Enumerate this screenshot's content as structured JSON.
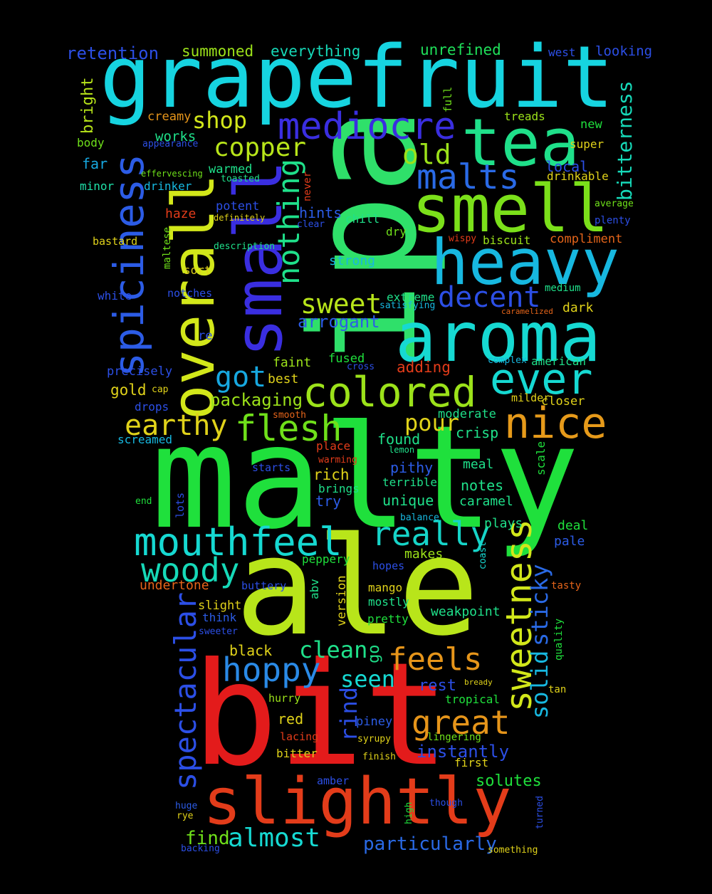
{
  "words": [
    {
      "text": "malty",
      "color": "#1fe03c"
    },
    {
      "text": "ipa",
      "color": "#2fe06a"
    },
    {
      "text": "ale",
      "color": "#b8e51a"
    },
    {
      "text": "bit",
      "color": "#e31b1b"
    },
    {
      "text": "grapefruit",
      "color": "#16d4e0"
    },
    {
      "text": "small",
      "color": "#3a2ee0"
    },
    {
      "text": "overall",
      "color": "#d2e71a"
    },
    {
      "text": "aroma",
      "color": "#16d9d2"
    },
    {
      "text": "slightly",
      "color": "#e33c1a"
    },
    {
      "text": "smell",
      "color": "#7be01a"
    },
    {
      "text": "heavy",
      "color": "#17b8e0"
    },
    {
      "text": "tea",
      "color": "#1fe08a"
    },
    {
      "text": "spiciness",
      "color": "#2c5ce6"
    },
    {
      "text": "mediocre",
      "color": "#3a2ee0"
    },
    {
      "text": "colored",
      "color": "#9ce21a"
    },
    {
      "text": "mouthfeel",
      "color": "#16d9d2"
    },
    {
      "text": "ever",
      "color": "#16d9d2"
    },
    {
      "text": "nice",
      "color": "#e69a1a"
    },
    {
      "text": "malts",
      "color": "#2a6ae6"
    },
    {
      "text": "flesh",
      "color": "#6fe01a"
    },
    {
      "text": "woody",
      "color": "#16d9b8"
    },
    {
      "text": "hoppy",
      "color": "#2a8ae6"
    },
    {
      "text": "sweetness",
      "color": "#d2e71a"
    },
    {
      "text": "really",
      "color": "#16d4c8"
    },
    {
      "text": "spectacular",
      "color": "#2c4fe6"
    },
    {
      "text": "great",
      "color": "#e6951a"
    },
    {
      "text": "feels",
      "color": "#e6951a"
    },
    {
      "text": "nothing",
      "color": "#1fe08a"
    },
    {
      "text": "earthy",
      "color": "#e0d21a"
    },
    {
      "text": "decent",
      "color": "#2c4fe6"
    },
    {
      "text": "got",
      "color": "#17a8e0"
    },
    {
      "text": "sweet",
      "color": "#b8e51a"
    },
    {
      "text": "copper",
      "color": "#b8e51a"
    },
    {
      "text": "old",
      "color": "#9ce21a"
    },
    {
      "text": "almost",
      "color": "#16d9d2"
    },
    {
      "text": "bitterness",
      "color": "#16d9b8"
    },
    {
      "text": "clean",
      "color": "#1fe08a"
    },
    {
      "text": "solid",
      "color": "#17b8e0"
    },
    {
      "text": "sticky",
      "color": "#2a6ae6"
    },
    {
      "text": "shop",
      "color": "#d2e71a"
    },
    {
      "text": "pour",
      "color": "#e0d21a"
    },
    {
      "text": "rind",
      "color": "#2c4fe6"
    },
    {
      "text": "seen",
      "color": "#16d9d2"
    },
    {
      "text": "particularly",
      "color": "#2a6ae6"
    },
    {
      "text": "arrogant",
      "color": "#2c5ce6"
    },
    {
      "text": "packaging",
      "color": "#9ce21a"
    },
    {
      "text": "instantly",
      "color": "#2c4fe6"
    },
    {
      "text": "find",
      "color": "#6fe01a"
    },
    {
      "text": "solutes",
      "color": "#1fe03c"
    },
    {
      "text": "retention",
      "color": "#2c4fe6"
    },
    {
      "text": "summoned",
      "color": "#9ce21a"
    },
    {
      "text": "everything",
      "color": "#16d9b8"
    },
    {
      "text": "unrefined",
      "color": "#1fe05a"
    },
    {
      "text": "west",
      "color": "#2c4fe6"
    },
    {
      "text": "looking",
      "color": "#2c4fe6"
    },
    {
      "text": "bright",
      "color": "#b8e51a"
    },
    {
      "text": "creamy",
      "color": "#e6951a"
    },
    {
      "text": "full",
      "color": "#6fe01a"
    },
    {
      "text": "treads",
      "color": "#9ce21a"
    },
    {
      "text": "works",
      "color": "#1fe08a"
    },
    {
      "text": "body",
      "color": "#6fe01a"
    },
    {
      "text": "appearance",
      "color": "#2c4fe6"
    },
    {
      "text": "new",
      "color": "#1fe03c"
    },
    {
      "text": "super",
      "color": "#e0d21a"
    },
    {
      "text": "far",
      "color": "#17a8e0"
    },
    {
      "text": "warmed",
      "color": "#1fe08a"
    },
    {
      "text": "local",
      "color": "#2c4fe6"
    },
    {
      "text": "effervescing",
      "color": "#6fe01a"
    },
    {
      "text": "toasted",
      "color": "#1fe08a"
    },
    {
      "text": "drinkable",
      "color": "#e0d21a"
    },
    {
      "text": "minor",
      "color": "#1fe0a8"
    },
    {
      "text": "drinker",
      "color": "#17b8e0"
    },
    {
      "text": "never",
      "color": "#e33c1a"
    },
    {
      "text": "haze",
      "color": "#e33c1a"
    },
    {
      "text": "potent",
      "color": "#2c4fe6"
    },
    {
      "text": "hints",
      "color": "#2c5ce6"
    },
    {
      "text": "chill",
      "color": "#1fe08a"
    },
    {
      "text": "dry",
      "color": "#6fe01a"
    },
    {
      "text": "average",
      "color": "#6fe01a"
    },
    {
      "text": "definitely",
      "color": "#e0d21a"
    },
    {
      "text": "clear",
      "color": "#2c4fe6"
    },
    {
      "text": "plenty",
      "color": "#2c4fe6"
    },
    {
      "text": "maltese",
      "color": "#6fe01a"
    },
    {
      "text": "bastard",
      "color": "#e0d21a"
    },
    {
      "text": "description",
      "color": "#1fe08a"
    },
    {
      "text": "wispy",
      "color": "#e33c1a"
    },
    {
      "text": "biscuit",
      "color": "#9ce21a"
    },
    {
      "text": "compliment",
      "color": "#e6651a"
    },
    {
      "text": "sort",
      "color": "#e0d21a"
    },
    {
      "text": "strong",
      "color": "#17b8e0"
    },
    {
      "text": "white",
      "color": "#2c4fe6"
    },
    {
      "text": "notches",
      "color": "#2c4fe6"
    },
    {
      "text": "extreme",
      "color": "#1fe08a"
    },
    {
      "text": "medium",
      "color": "#1fe08a"
    },
    {
      "text": "satisfying",
      "color": "#17b8e0"
    },
    {
      "text": "caramelized",
      "color": "#e6651a"
    },
    {
      "text": "dark",
      "color": "#e0d21a"
    },
    {
      "text": "re",
      "color": "#2c4fe6"
    },
    {
      "text": "faint",
      "color": "#9ce21a"
    },
    {
      "text": "fused",
      "color": "#1fe03c"
    },
    {
      "text": "best",
      "color": "#e0d21a"
    },
    {
      "text": "cross",
      "color": "#2c4fe6"
    },
    {
      "text": "complex",
      "color": "#17b8e0"
    },
    {
      "text": "american",
      "color": "#1fe08a"
    },
    {
      "text": "precisely",
      "color": "#2c4fe6"
    },
    {
      "text": "adding",
      "color": "#e33c1a"
    },
    {
      "text": "gold",
      "color": "#e0d21a"
    },
    {
      "text": "cap",
      "color": "#e0d21a"
    },
    {
      "text": "drops",
      "color": "#2c4fe6"
    },
    {
      "text": "smooth",
      "color": "#e6651a"
    },
    {
      "text": "moderate",
      "color": "#1fe08a"
    },
    {
      "text": "milder",
      "color": "#e0d21a"
    },
    {
      "text": "closer",
      "color": "#e0d21a"
    },
    {
      "text": "screamed",
      "color": "#17b8e0"
    },
    {
      "text": "found",
      "color": "#1fe08a"
    },
    {
      "text": "crisp",
      "color": "#1fe08a"
    },
    {
      "text": "place",
      "color": "#e33c1a"
    },
    {
      "text": "lemon",
      "color": "#1fe08a"
    },
    {
      "text": "scale",
      "color": "#1fe03c"
    },
    {
      "text": "warming",
      "color": "#e33c1a"
    },
    {
      "text": "starts",
      "color": "#2c4fe6"
    },
    {
      "text": "rich",
      "color": "#e0d21a"
    },
    {
      "text": "pithy",
      "color": "#2c5ce6"
    },
    {
      "text": "meal",
      "color": "#1fe08a"
    },
    {
      "text": "brings",
      "color": "#1fe08a"
    },
    {
      "text": "terrible",
      "color": "#1fe08a"
    },
    {
      "text": "notes",
      "color": "#1fe08a"
    },
    {
      "text": "end",
      "color": "#1fe03c"
    },
    {
      "text": "lots",
      "color": "#2c4fe6"
    },
    {
      "text": "try",
      "color": "#2c5ce6"
    },
    {
      "text": "unique",
      "color": "#1fe08a"
    },
    {
      "text": "caramel",
      "color": "#1fe08a"
    },
    {
      "text": "balance",
      "color": "#17b8e0"
    },
    {
      "text": "plays",
      "color": "#1fe08a"
    },
    {
      "text": "deal",
      "color": "#1fe03c"
    },
    {
      "text": "pale",
      "color": "#2c5ce6"
    },
    {
      "text": "coast",
      "color": "#16d9d2"
    },
    {
      "text": "makes",
      "color": "#9ce21a"
    },
    {
      "text": "peppery",
      "color": "#1fe03c"
    },
    {
      "text": "hopes",
      "color": "#2c4fe6"
    },
    {
      "text": "undertone",
      "color": "#e6651a"
    },
    {
      "text": "buttery",
      "color": "#2c4fe6"
    },
    {
      "text": "abv",
      "color": "#1fe08a"
    },
    {
      "text": "mango",
      "color": "#e0d21a"
    },
    {
      "text": "tasty",
      "color": "#e6651a"
    },
    {
      "text": "slight",
      "color": "#e0d21a"
    },
    {
      "text": "version",
      "color": "#e0d21a"
    },
    {
      "text": "mostly",
      "color": "#1fe08a"
    },
    {
      "text": "weakpoint",
      "color": "#1fe08a"
    },
    {
      "text": "think",
      "color": "#2c5ce6"
    },
    {
      "text": "quality",
      "color": "#1fe03c"
    },
    {
      "text": "pretty",
      "color": "#1fe03c"
    },
    {
      "text": "sweeter",
      "color": "#2c4fe6"
    },
    {
      "text": "black",
      "color": "#e0d21a"
    },
    {
      "text": "go",
      "color": "#1fe08a"
    },
    {
      "text": "rest",
      "color": "#2c4fe6"
    },
    {
      "text": "bready",
      "color": "#e0d21a"
    },
    {
      "text": "tan",
      "color": "#e0d21a"
    },
    {
      "text": "hurry",
      "color": "#9ce21a"
    },
    {
      "text": "tropical",
      "color": "#1fe03c"
    },
    {
      "text": "red",
      "color": "#e0d21a"
    },
    {
      "text": "piney",
      "color": "#2c5ce6"
    },
    {
      "text": "lacing",
      "color": "#e33c1a"
    },
    {
      "text": "syrupy",
      "color": "#e0d21a"
    },
    {
      "text": "lingering",
      "color": "#6fe01a"
    },
    {
      "text": "bitter",
      "color": "#e0d21a"
    },
    {
      "text": "finish",
      "color": "#e0d21a"
    },
    {
      "text": "first",
      "color": "#e0d21a"
    },
    {
      "text": "amber",
      "color": "#2c4fe6"
    },
    {
      "text": "huge",
      "color": "#2c5ce6"
    },
    {
      "text": "rye",
      "color": "#e0d21a"
    },
    {
      "text": "high",
      "color": "#1fe03c"
    },
    {
      "text": "though",
      "color": "#2c4fe6"
    },
    {
      "text": "turned",
      "color": "#2c4fe6"
    },
    {
      "text": "backing",
      "color": "#2c4fe6"
    },
    {
      "text": "something",
      "color": "#e0d21a"
    }
  ]
}
